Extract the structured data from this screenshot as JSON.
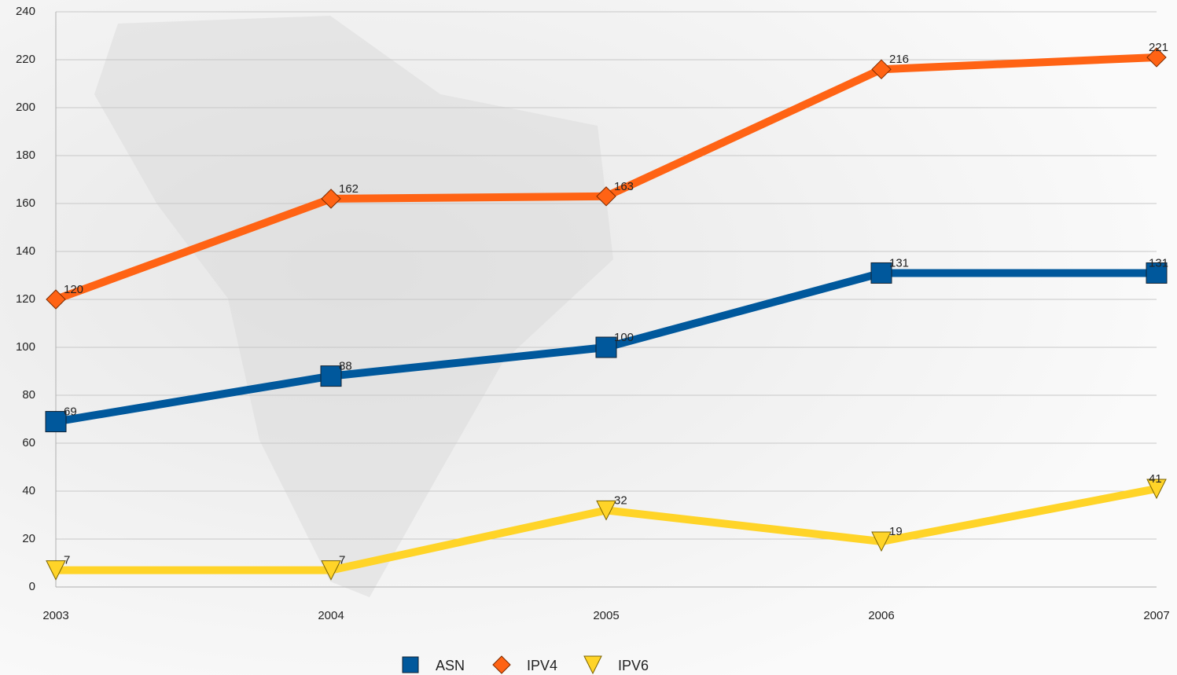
{
  "chart_data": {
    "type": "line",
    "categories": [
      "2003",
      "2004",
      "2005",
      "2006",
      "2007"
    ],
    "series": [
      {
        "name": "ASN",
        "color": "#00589c",
        "marker": "square",
        "values": [
          69,
          88,
          100,
          131,
          131
        ]
      },
      {
        "name": "IPV4",
        "color": "#ff6314",
        "marker": "diamond",
        "values": [
          120,
          162,
          163,
          216,
          221
        ]
      },
      {
        "name": "IPV6",
        "color": "#ffd428",
        "marker": "triangle-down",
        "values": [
          7,
          7,
          32,
          19,
          41
        ]
      }
    ],
    "ylim": [
      0,
      240
    ],
    "yticks": [
      0,
      20,
      40,
      60,
      80,
      100,
      120,
      140,
      160,
      180,
      200,
      220,
      240
    ],
    "grid": true,
    "legend": "bottom",
    "data_labels": true
  }
}
